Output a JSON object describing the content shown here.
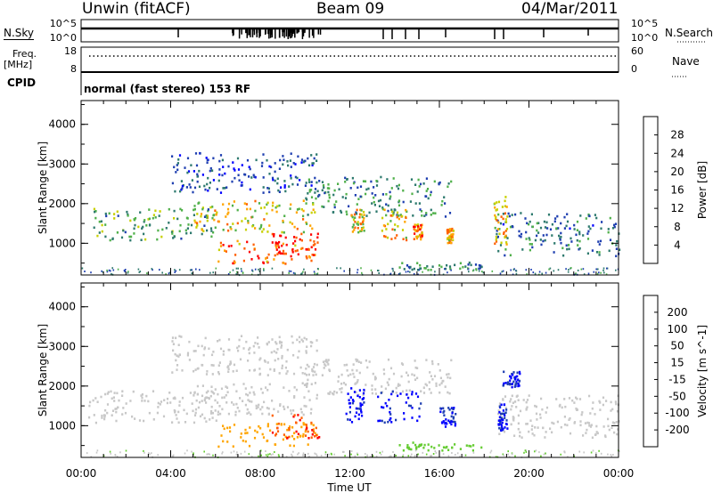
{
  "header": {
    "station": "Unwin (fitACF)",
    "beam": "Beam 09",
    "date": "04/Mar/2011"
  },
  "nsky": {
    "label": "N.Sky",
    "tick_top": "10^5",
    "tick_bottom": "10^0"
  },
  "nsearch": {
    "label": "N.Search",
    "tick_top": "10^5",
    "tick_bottom": "10^0"
  },
  "freq": {
    "label_line1": "Freq.",
    "label_line2": "[MHz]",
    "tick_top": "18",
    "tick_bottom": "8",
    "value_mhz": 10.5
  },
  "nave": {
    "label": "Nave",
    "tick_top": "60",
    "tick_bottom": "0",
    "value": 40
  },
  "cpid": {
    "label": "CPID",
    "text": "normal (fast stereo) 153 RF"
  },
  "colors": {
    "power": [
      "#0000ff",
      "#1f3fb0",
      "#2e7a6e",
      "#50b04a",
      "#c8d000",
      "#ffa500",
      "#ff6000",
      "#ff0000"
    ],
    "velocity": [
      "#ff0000",
      "#ff6000",
      "#ffa500",
      "#c8c8c8",
      "#c8c8c8",
      "#66cc33",
      "#2e7a6e",
      "#1f3fb0",
      "#0000ff"
    ]
  },
  "chart_data": [
    {
      "type": "heatmap",
      "panel": "power",
      "ylabel": "Slant Range [km]",
      "ylim": [
        200,
        4600
      ],
      "xlim": [
        "00:00",
        "24:00"
      ],
      "yticks": [
        "1000",
        "2000",
        "3000",
        "4000"
      ],
      "colorbar": {
        "label": "Power [dB]",
        "ticks": [
          "4",
          "8",
          "12",
          "16",
          "20",
          "24",
          "28"
        ],
        "range": [
          0,
          30
        ]
      },
      "echo_regions": [
        {
          "t_start": 0.3,
          "t_end": 6.0,
          "r_low": 1100,
          "r_high": 1900,
          "level": 12
        },
        {
          "t_start": 5.0,
          "t_end": 10.5,
          "r_low": 1300,
          "r_high": 2100,
          "level": 18
        },
        {
          "t_start": 6.0,
          "t_end": 10.5,
          "r_low": 500,
          "r_high": 1100,
          "level": 24
        },
        {
          "t_start": 8.5,
          "t_end": 10.6,
          "r_low": 700,
          "r_high": 1300,
          "level": 28
        },
        {
          "t_start": 4.0,
          "t_end": 10.5,
          "r_low": 2300,
          "r_high": 3300,
          "level": 6
        },
        {
          "t_start": 10.0,
          "t_end": 16.5,
          "r_low": 1700,
          "r_high": 2700,
          "level": 10
        },
        {
          "t_start": 12.0,
          "t_end": 12.6,
          "r_low": 1300,
          "r_high": 1900,
          "level": 18
        },
        {
          "t_start": 13.4,
          "t_end": 14.5,
          "r_low": 1100,
          "r_high": 1900,
          "level": 20
        },
        {
          "t_start": 14.8,
          "t_end": 15.2,
          "r_low": 1100,
          "r_high": 1500,
          "level": 22
        },
        {
          "t_start": 16.3,
          "t_end": 16.6,
          "r_low": 1000,
          "r_high": 1400,
          "level": 20
        },
        {
          "t_start": 18.5,
          "t_end": 24.0,
          "r_low": 700,
          "r_high": 1800,
          "level": 8
        },
        {
          "t_start": 18.4,
          "t_end": 19.0,
          "r_low": 1000,
          "r_high": 2200,
          "level": 20
        },
        {
          "t_start": 14.0,
          "t_end": 18.0,
          "r_low": 350,
          "r_high": 550,
          "level": 10
        }
      ]
    },
    {
      "type": "heatmap",
      "panel": "velocity",
      "ylabel": "Slant Range [km]",
      "xlabel": "Time UT",
      "ylim": [
        200,
        4600
      ],
      "xlim": [
        "00:00",
        "24:00"
      ],
      "yticks": [
        "1000",
        "2000",
        "3000",
        "4000"
      ],
      "xticks": [
        "00:00",
        "04:00",
        "08:00",
        "12:00",
        "16:00",
        "20:00",
        "00:00"
      ],
      "colorbar": {
        "label": "Velocity [m s^-1]",
        "ticks": [
          "-200",
          "-100",
          "-50",
          "-15",
          "15",
          "50",
          "100",
          "200"
        ],
        "range": [
          -250,
          250
        ]
      },
      "echo_regions": [
        {
          "t_start": 0.3,
          "t_end": 6.0,
          "r_low": 1100,
          "r_high": 1900,
          "level": 0
        },
        {
          "t_start": 5.0,
          "t_end": 10.5,
          "r_low": 1300,
          "r_high": 2100,
          "level": -10
        },
        {
          "t_start": 6.0,
          "t_end": 10.5,
          "r_low": 500,
          "r_high": 1100,
          "level": -80
        },
        {
          "t_start": 8.5,
          "t_end": 10.6,
          "r_low": 700,
          "r_high": 1300,
          "level": -200
        },
        {
          "t_start": 4.0,
          "t_end": 10.5,
          "r_low": 2300,
          "r_high": 3300,
          "level": -30
        },
        {
          "t_start": 10.0,
          "t_end": 16.5,
          "r_low": 1800,
          "r_high": 2700,
          "level": 0
        },
        {
          "t_start": 11.8,
          "t_end": 12.6,
          "r_low": 1100,
          "r_high": 2000,
          "level": 220
        },
        {
          "t_start": 13.2,
          "t_end": 15.2,
          "r_low": 1100,
          "r_high": 1900,
          "level": 220
        },
        {
          "t_start": 16.0,
          "t_end": 16.7,
          "r_low": 1000,
          "r_high": 1500,
          "level": 220
        },
        {
          "t_start": 18.5,
          "t_end": 24.0,
          "r_low": 700,
          "r_high": 1800,
          "level": 0
        },
        {
          "t_start": 18.6,
          "t_end": 19.0,
          "r_low": 900,
          "r_high": 1600,
          "level": 220
        },
        {
          "t_start": 18.8,
          "t_end": 19.6,
          "r_low": 2000,
          "r_high": 2400,
          "level": 200
        },
        {
          "t_start": 14.0,
          "t_end": 18.0,
          "r_low": 400,
          "r_high": 600,
          "level": 40
        }
      ]
    }
  ]
}
